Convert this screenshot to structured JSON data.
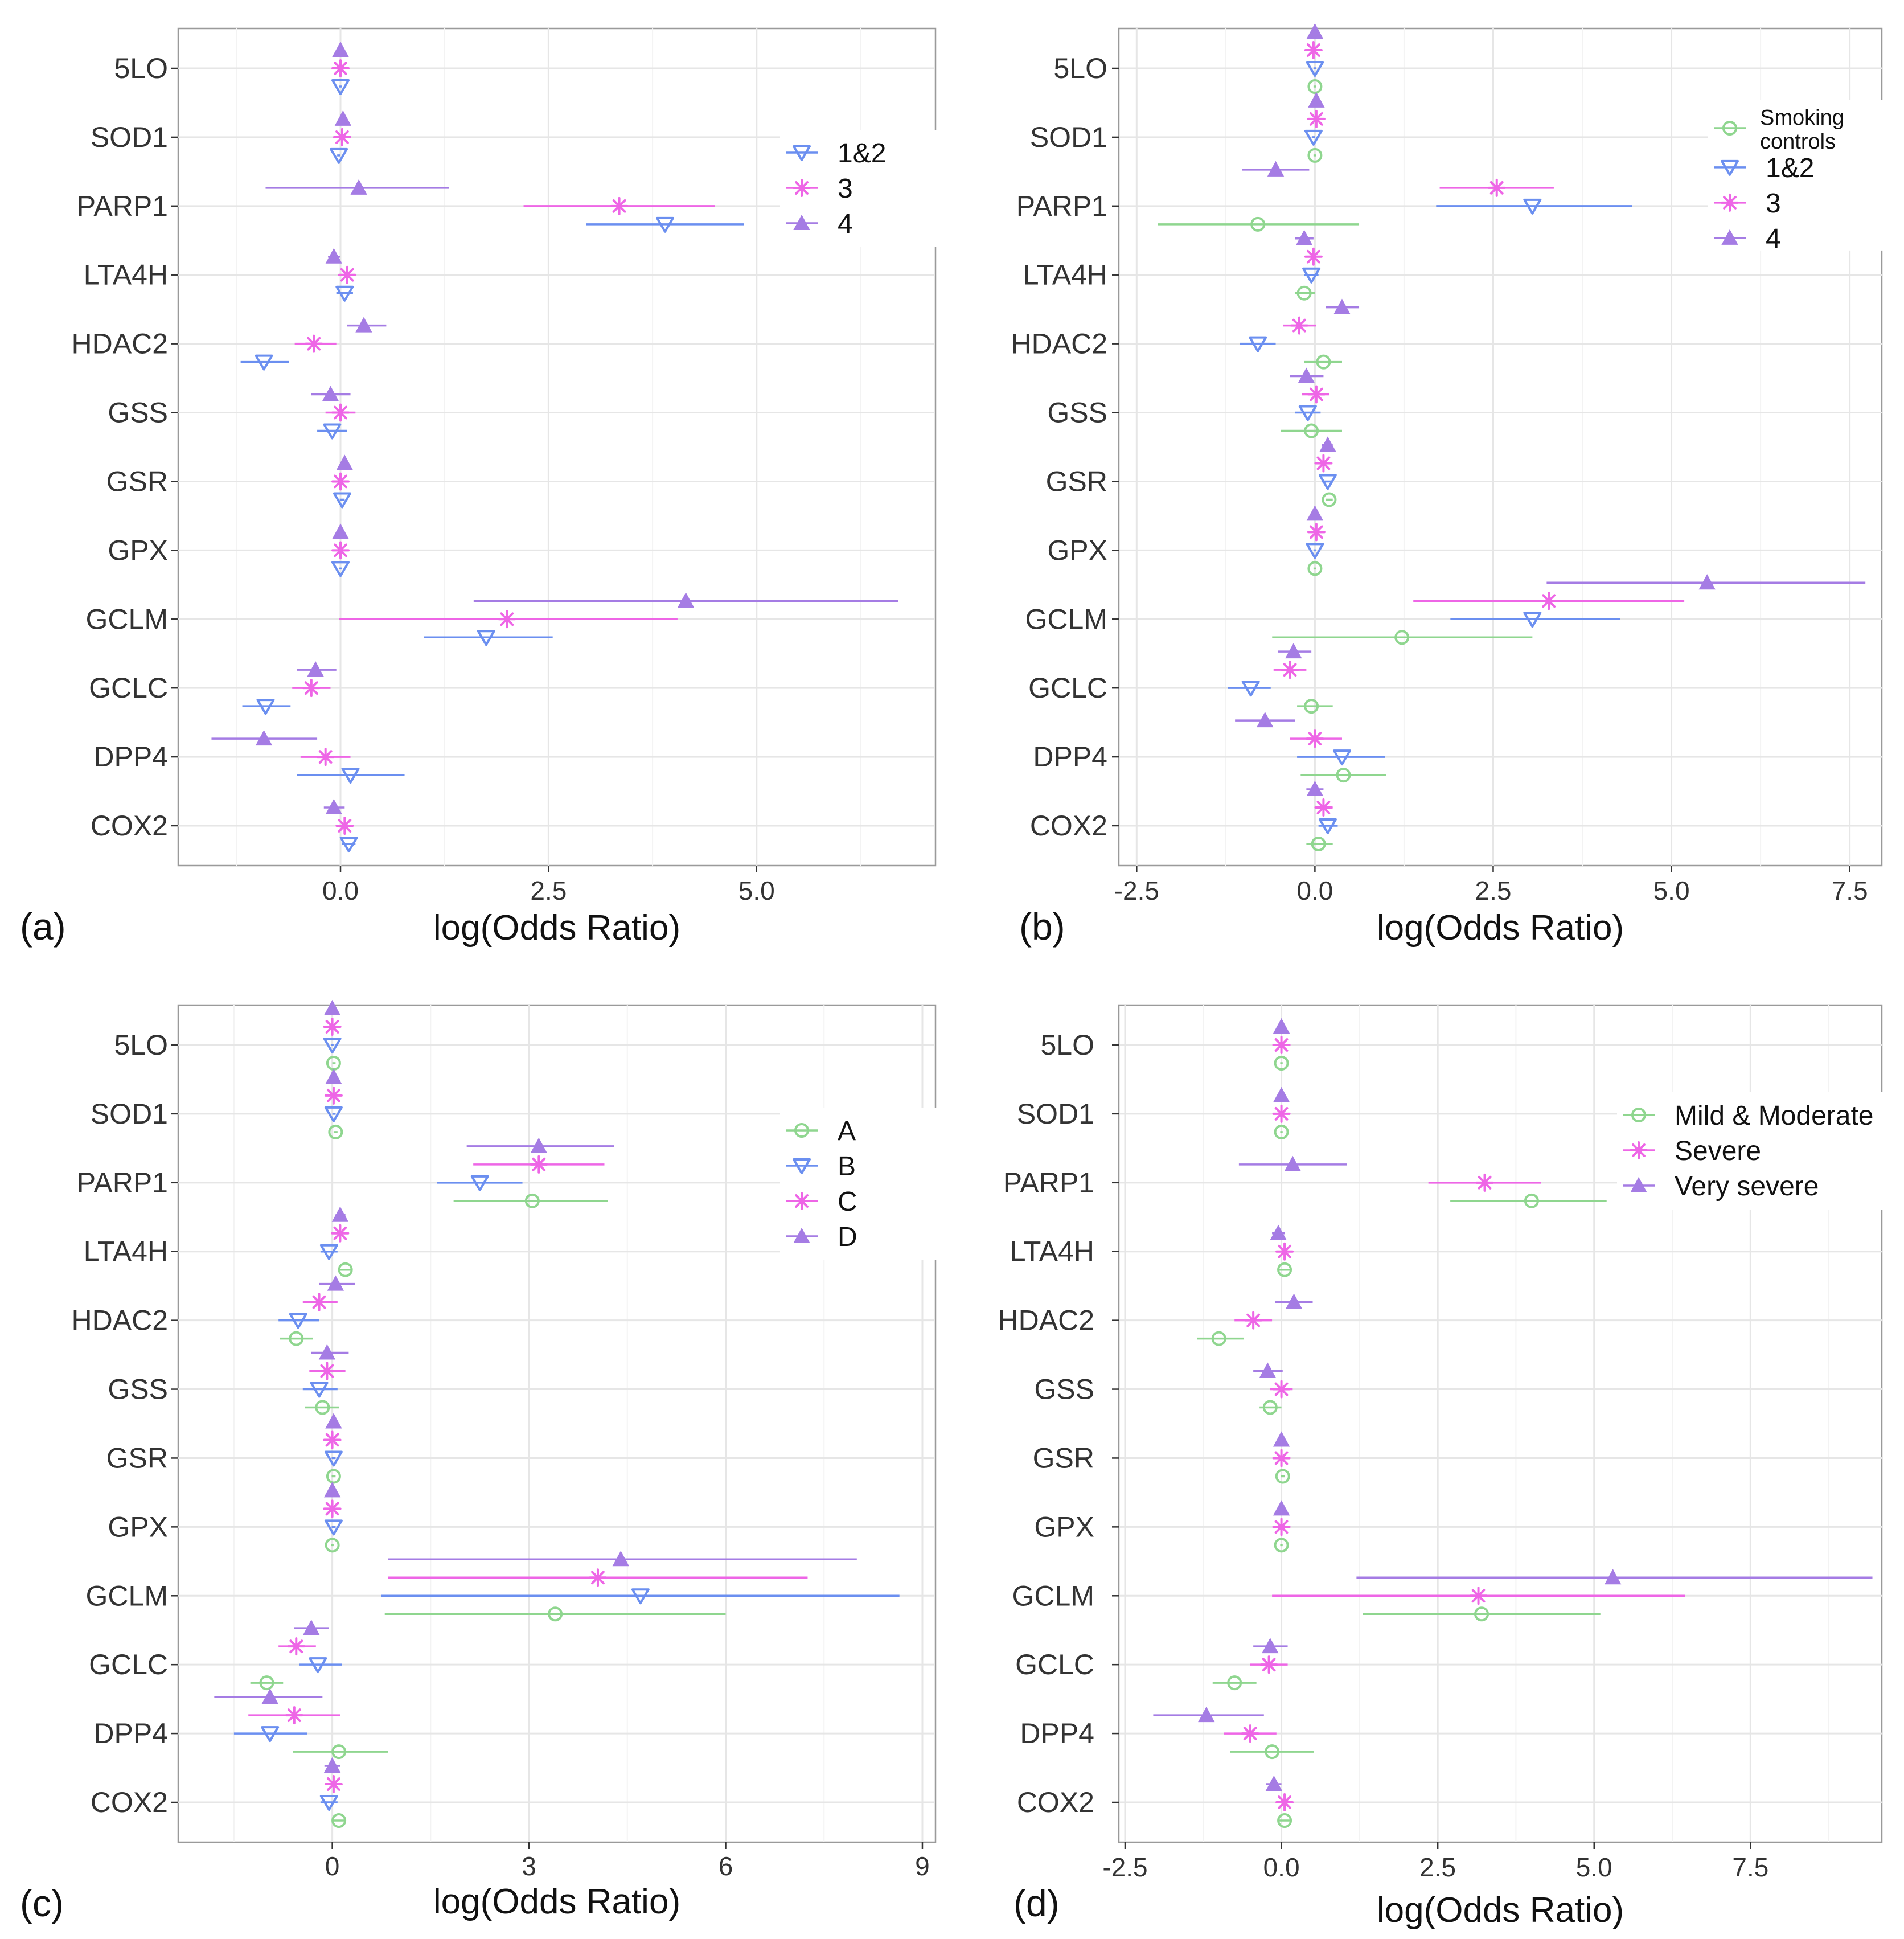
{
  "figure": {
    "genes": [
      "5LO",
      "SOD1",
      "PARP1",
      "LTA4H",
      "HDAC2",
      "GSS",
      "GSR",
      "GPX",
      "GCLM",
      "GCLC",
      "DPP4",
      "COX2"
    ],
    "colors": {
      "green": "#8fd68f",
      "blue": "#6b8ff0",
      "pink": "#ee66e6",
      "purple": "#a57ce4"
    }
  },
  "chart_data": [
    {
      "type": "scatter",
      "label": "(a)",
      "xlabel": "log(Odds Ratio)",
      "xlim": [
        -1.95,
        7.15
      ],
      "xticks": [
        0.0,
        2.5,
        5.0
      ],
      "xticklabels": [
        "0.0",
        "2.5",
        "5.0"
      ],
      "legend": [
        "1&2",
        "3",
        "4"
      ],
      "series": [
        {
          "name": "1&2",
          "color": "blue",
          "marker": "triangle-down",
          "values": [
            [
              0,
              -0.02,
              0.02
            ],
            [
              -0.02,
              -0.04,
              0.0
            ],
            [
              3.9,
              2.95,
              4.85
            ],
            [
              0.05,
              -0.05,
              0.15
            ],
            [
              -0.92,
              -1.2,
              -0.62
            ],
            [
              -0.1,
              -0.28,
              0.08
            ],
            [
              0.02,
              -0.01,
              0.05
            ],
            [
              0.0,
              -0.02,
              0.02
            ],
            [
              1.75,
              1.0,
              2.55
            ],
            [
              -0.9,
              -1.18,
              -0.6
            ],
            [
              0.12,
              -0.52,
              0.77
            ],
            [
              0.1,
              0.02,
              0.18
            ]
          ]
        },
        {
          "name": "3",
          "color": "pink",
          "marker": "asterisk",
          "values": [
            [
              0,
              -0.02,
              0.02
            ],
            [
              0.02,
              0.0,
              0.05
            ],
            [
              3.35,
              2.2,
              4.5
            ],
            [
              0.08,
              -0.02,
              0.18
            ],
            [
              -0.32,
              -0.55,
              -0.05
            ],
            [
              0.0,
              -0.18,
              0.18
            ],
            [
              0.0,
              -0.03,
              0.03
            ],
            [
              0.0,
              -0.03,
              0.03
            ],
            [
              2.0,
              -0.02,
              4.05
            ],
            [
              -0.35,
              -0.58,
              -0.12
            ],
            [
              -0.18,
              -0.48,
              0.12
            ],
            [
              0.05,
              -0.05,
              0.15
            ]
          ]
        },
        {
          "name": "4",
          "color": "purple",
          "marker": "triangle-up",
          "values": [
            [
              0,
              -0.02,
              0.02
            ],
            [
              0.03,
              0.0,
              0.06
            ],
            [
              0.22,
              -0.9,
              1.3
            ],
            [
              -0.08,
              -0.15,
              0.0
            ],
            [
              0.28,
              0.08,
              0.55
            ],
            [
              -0.12,
              -0.35,
              0.12
            ],
            [
              0.05,
              0.02,
              0.08
            ],
            [
              0.0,
              -0.02,
              0.02
            ],
            [
              4.15,
              1.6,
              6.7
            ],
            [
              -0.3,
              -0.52,
              -0.05
            ],
            [
              -0.92,
              -1.55,
              -0.28
            ],
            [
              -0.08,
              -0.2,
              0.05
            ]
          ]
        }
      ]
    },
    {
      "type": "scatter",
      "label": "(b)",
      "xlabel": "log(Odds Ratio)",
      "xlim": [
        -2.75,
        7.95
      ],
      "xticks": [
        -2.5,
        0.0,
        2.5,
        5.0,
        7.5
      ],
      "xticklabels": [
        "-2.5",
        "0.0",
        "2.5",
        "5.0",
        "7.5"
      ],
      "legend": [
        "Smoking controls",
        "1&2",
        "3",
        "4"
      ],
      "series": [
        {
          "name": "Smoking controls",
          "color": "green",
          "marker": "circle",
          "values": [
            [
              0.0,
              -0.02,
              0.02
            ],
            [
              0.0,
              -0.02,
              0.02
            ],
            [
              -0.8,
              -2.2,
              0.62
            ],
            [
              -0.15,
              -0.28,
              0.0
            ],
            [
              0.12,
              -0.15,
              0.38
            ],
            [
              -0.05,
              -0.48,
              0.38
            ],
            [
              0.2,
              0.15,
              0.25
            ],
            [
              0.0,
              -0.02,
              0.02
            ],
            [
              1.22,
              -0.6,
              3.05
            ],
            [
              -0.05,
              -0.25,
              0.25
            ],
            [
              0.4,
              -0.2,
              1.0
            ],
            [
              0.05,
              -0.12,
              0.25
            ]
          ]
        },
        {
          "name": "1&2",
          "color": "blue",
          "marker": "triangle-down",
          "values": [
            [
              0,
              -0.02,
              0.02
            ],
            [
              -0.02,
              -0.04,
              0.0
            ],
            [
              3.05,
              1.7,
              4.45
            ],
            [
              -0.05,
              -0.15,
              0.05
            ],
            [
              -0.8,
              -1.05,
              -0.55
            ],
            [
              -0.1,
              -0.28,
              0.08
            ],
            [
              0.18,
              0.1,
              0.25
            ],
            [
              0.0,
              -0.02,
              0.02
            ],
            [
              3.05,
              1.9,
              4.28
            ],
            [
              -0.9,
              -1.22,
              -0.62
            ],
            [
              0.38,
              -0.25,
              0.98
            ],
            [
              0.18,
              0.05,
              0.32
            ]
          ]
        },
        {
          "name": "3",
          "color": "pink",
          "marker": "asterisk",
          "values": [
            [
              -0.02,
              -0.04,
              0.0
            ],
            [
              0.02,
              0.0,
              0.05
            ],
            [
              2.55,
              1.75,
              3.35
            ],
            [
              -0.02,
              -0.12,
              0.08
            ],
            [
              -0.22,
              -0.45,
              0.02
            ],
            [
              0.02,
              -0.18,
              0.2
            ],
            [
              0.12,
              0.08,
              0.15
            ],
            [
              0.02,
              -0.01,
              0.05
            ],
            [
              3.28,
              1.38,
              5.18
            ],
            [
              -0.35,
              -0.58,
              -0.12
            ],
            [
              0.0,
              -0.35,
              0.38
            ],
            [
              0.12,
              0.02,
              0.25
            ]
          ]
        },
        {
          "name": "4",
          "color": "purple",
          "marker": "triangle-up",
          "values": [
            [
              0,
              -0.02,
              0.02
            ],
            [
              0.02,
              0.0,
              0.05
            ],
            [
              -0.55,
              -1.02,
              -0.08
            ],
            [
              -0.15,
              -0.28,
              -0.02
            ],
            [
              0.38,
              0.15,
              0.62
            ],
            [
              -0.12,
              -0.35,
              0.12
            ],
            [
              0.18,
              0.1,
              0.25
            ],
            [
              0.0,
              -0.02,
              0.02
            ],
            [
              5.5,
              3.25,
              7.72
            ],
            [
              -0.3,
              -0.52,
              -0.05
            ],
            [
              -0.7,
              -1.12,
              -0.28
            ],
            [
              0.0,
              -0.12,
              0.12
            ]
          ]
        }
      ]
    },
    {
      "type": "scatter",
      "label": "(c)",
      "xlabel": "log(Odds Ratio)",
      "xlim": [
        -2.35,
        9.2
      ],
      "xticks": [
        0,
        3,
        6,
        9
      ],
      "xticklabels": [
        "0",
        "3",
        "6",
        "9"
      ],
      "legend": [
        "A",
        "B",
        "C",
        "D"
      ],
      "series": [
        {
          "name": "A",
          "color": "green",
          "marker": "circle",
          "values": [
            [
              0.02,
              0.0,
              0.05
            ],
            [
              0.05,
              0.02,
              0.08
            ],
            [
              3.05,
              1.85,
              4.2
            ],
            [
              0.2,
              0.1,
              0.3
            ],
            [
              -0.55,
              -0.8,
              -0.3
            ],
            [
              -0.15,
              -0.42,
              0.1
            ],
            [
              0.02,
              -0.01,
              0.05
            ],
            [
              0.0,
              -0.02,
              0.02
            ],
            [
              3.4,
              0.8,
              6.0
            ],
            [
              -1.0,
              -1.25,
              -0.75
            ],
            [
              0.1,
              -0.6,
              0.85
            ],
            [
              0.1,
              0.02,
              0.18
            ]
          ]
        },
        {
          "name": "B",
          "color": "blue",
          "marker": "triangle-down",
          "values": [
            [
              0.0,
              -0.02,
              0.02
            ],
            [
              0.02,
              0.0,
              0.05
            ],
            [
              2.25,
              1.6,
              2.9
            ],
            [
              -0.05,
              -0.18,
              0.08
            ],
            [
              -0.52,
              -0.82,
              -0.2
            ],
            [
              -0.2,
              -0.45,
              0.08
            ],
            [
              0.02,
              -0.01,
              0.05
            ],
            [
              0.02,
              -0.01,
              0.05
            ],
            [
              4.7,
              0.75,
              8.65
            ],
            [
              -0.22,
              -0.5,
              0.15
            ],
            [
              -0.95,
              -1.5,
              -0.38
            ],
            [
              -0.05,
              -0.18,
              0.08
            ]
          ]
        },
        {
          "name": "C",
          "color": "pink",
          "marker": "asterisk",
          "values": [
            [
              0.0,
              -0.02,
              0.02
            ],
            [
              0.02,
              0.0,
              0.05
            ],
            [
              3.15,
              2.15,
              4.15
            ],
            [
              0.12,
              0.02,
              0.22
            ],
            [
              -0.2,
              -0.45,
              0.08
            ],
            [
              -0.08,
              -0.35,
              0.2
            ],
            [
              0.0,
              -0.03,
              0.03
            ],
            [
              0.0,
              -0.03,
              0.03
            ],
            [
              4.05,
              0.85,
              7.25
            ],
            [
              -0.55,
              -0.82,
              -0.25
            ],
            [
              -0.58,
              -1.28,
              0.12
            ],
            [
              0.02,
              -0.1,
              0.12
            ]
          ]
        },
        {
          "name": "D",
          "color": "purple",
          "marker": "triangle-up",
          "values": [
            [
              0.0,
              -0.02,
              0.02
            ],
            [
              0.02,
              0.0,
              0.05
            ],
            [
              3.15,
              2.05,
              4.3
            ],
            [
              0.12,
              0.05,
              0.2
            ],
            [
              0.05,
              -0.2,
              0.35
            ],
            [
              -0.08,
              -0.32,
              0.25
            ],
            [
              0.02,
              -0.01,
              0.05
            ],
            [
              0.0,
              -0.02,
              0.02
            ],
            [
              4.4,
              0.85,
              8.0
            ],
            [
              -0.32,
              -0.58,
              -0.05
            ],
            [
              -0.95,
              -1.8,
              -0.15
            ],
            [
              0.0,
              -0.12,
              0.12
            ]
          ]
        }
      ]
    },
    {
      "type": "scatter",
      "label": "(d)",
      "xlabel": "log(Odds Ratio)",
      "xlim": [
        -2.6,
        9.6
      ],
      "xticks": [
        -2.5,
        0.0,
        2.5,
        5.0,
        7.5
      ],
      "xticklabels": [
        "-2.5",
        "0.0",
        "2.5",
        "5.0",
        "7.5"
      ],
      "legend": [
        "Mild & Moderate",
        "Severe",
        "Very severe"
      ],
      "series": [
        {
          "name": "Mild & Moderate",
          "color": "green",
          "marker": "circle",
          "values": [
            [
              0.0,
              -0.02,
              0.02
            ],
            [
              0.0,
              -0.02,
              0.02
            ],
            [
              4.0,
              2.7,
              5.2
            ],
            [
              0.05,
              -0.05,
              0.15
            ],
            [
              -1.0,
              -1.35,
              -0.6
            ],
            [
              -0.18,
              -0.35,
              0.0
            ],
            [
              0.02,
              -0.01,
              0.05
            ],
            [
              0.0,
              -0.02,
              0.02
            ],
            [
              3.2,
              1.3,
              5.1
            ],
            [
              -0.75,
              -1.1,
              -0.4
            ],
            [
              -0.15,
              -0.82,
              0.52
            ],
            [
              0.05,
              -0.05,
              0.15
            ]
          ]
        },
        {
          "name": "Severe",
          "color": "pink",
          "marker": "asterisk",
          "values": [
            [
              0.0,
              -0.02,
              0.02
            ],
            [
              0.0,
              -0.02,
              0.02
            ],
            [
              3.25,
              2.35,
              4.15
            ],
            [
              0.05,
              -0.05,
              0.15
            ],
            [
              -0.45,
              -0.75,
              -0.15
            ],
            [
              0.0,
              -0.18,
              0.18
            ],
            [
              0.0,
              -0.03,
              0.03
            ],
            [
              0.0,
              -0.03,
              0.03
            ],
            [
              3.15,
              -0.15,
              6.45
            ],
            [
              -0.2,
              -0.5,
              0.1
            ],
            [
              -0.5,
              -0.92,
              -0.08
            ],
            [
              0.05,
              -0.05,
              0.15
            ]
          ]
        },
        {
          "name": "Very severe",
          "color": "purple",
          "marker": "triangle-up",
          "values": [
            [
              0.0,
              -0.02,
              0.02
            ],
            [
              0.0,
              -0.02,
              0.02
            ],
            [
              0.18,
              -0.68,
              1.05
            ],
            [
              -0.05,
              -0.15,
              0.05
            ],
            [
              0.2,
              -0.1,
              0.5
            ],
            [
              -0.22,
              -0.45,
              0.02
            ],
            [
              0.0,
              -0.02,
              0.02
            ],
            [
              0.0,
              -0.02,
              0.02
            ],
            [
              5.3,
              1.2,
              9.45
            ],
            [
              -0.18,
              -0.45,
              0.1
            ],
            [
              -1.2,
              -2.05,
              -0.28
            ],
            [
              -0.12,
              -0.25,
              0.0
            ]
          ]
        }
      ]
    }
  ]
}
